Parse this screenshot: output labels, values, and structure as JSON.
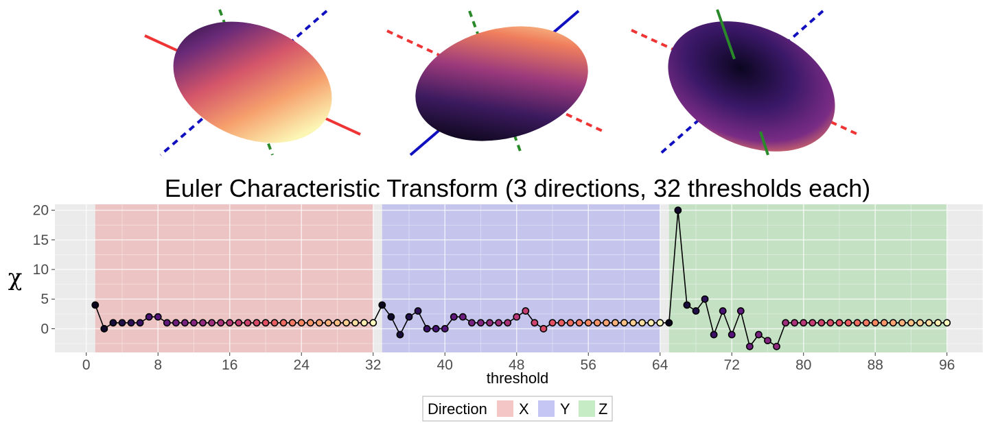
{
  "chart_data": {
    "type": "line",
    "title": "Euler Characteristic Transform (3 directions, 32 thresholds each)",
    "xlabel": "threshold",
    "ylabel": "χ",
    "xlim": [
      -3.5,
      100
    ],
    "ylim": [
      -4,
      21
    ],
    "x_ticks": [
      0,
      8,
      16,
      24,
      32,
      40,
      48,
      56,
      64,
      72,
      80,
      88,
      96
    ],
    "y_ticks": [
      0,
      5,
      10,
      15,
      20
    ],
    "grid": true,
    "legend": {
      "title": "Direction",
      "placement": "bottom",
      "entries": [
        {
          "label": "X",
          "color": "#f4a3a3"
        },
        {
          "label": "Y",
          "color": "#a3a3f4"
        },
        {
          "label": "Z",
          "color": "#a3e0a3"
        }
      ]
    },
    "bands": [
      {
        "direction": "X",
        "x": [
          1,
          32
        ],
        "color": "#f08080"
      },
      {
        "direction": "Y",
        "x": [
          33,
          64
        ],
        "color": "#8080f0"
      },
      {
        "direction": "Z",
        "x": [
          65,
          96
        ],
        "color": "#80d080"
      }
    ],
    "series": [
      {
        "x": [
          1,
          2,
          3,
          4,
          5,
          6,
          7,
          8,
          9,
          10,
          11,
          12,
          13,
          14,
          15,
          16,
          17,
          18,
          19,
          20,
          21,
          22,
          23,
          24,
          25,
          26,
          27,
          28,
          29,
          30,
          31,
          32,
          33,
          34,
          35,
          36,
          37,
          38,
          39,
          40,
          41,
          42,
          43,
          44,
          45,
          46,
          47,
          48,
          49,
          50,
          51,
          52,
          53,
          54,
          55,
          56,
          57,
          58,
          59,
          60,
          61,
          62,
          63,
          64,
          65,
          66,
          67,
          68,
          69,
          70,
          71,
          72,
          73,
          74,
          75,
          76,
          77,
          78,
          79,
          80,
          81,
          82,
          83,
          84,
          85,
          86,
          87,
          88,
          89,
          90,
          91,
          92,
          93,
          94,
          95,
          96
        ],
        "values": [
          4,
          0,
          1,
          1,
          1,
          1,
          2,
          2,
          1,
          1,
          1,
          1,
          1,
          1,
          1,
          1,
          1,
          1,
          1,
          1,
          1,
          1,
          1,
          1,
          1,
          1,
          1,
          1,
          1,
          1,
          1,
          1,
          4,
          2,
          -1,
          2,
          3,
          0,
          0,
          0,
          2,
          2,
          1,
          1,
          1,
          1,
          1,
          2,
          3,
          1,
          0,
          1,
          1,
          1,
          1,
          1,
          1,
          1,
          1,
          1,
          1,
          1,
          1,
          1,
          1,
          20,
          4,
          3,
          5,
          -1,
          3,
          -1,
          3,
          -3,
          -1,
          -2,
          -3,
          1,
          1,
          1,
          1,
          1,
          1,
          1,
          1,
          1,
          1,
          1,
          1,
          1,
          1,
          1,
          1,
          1,
          1,
          1
        ]
      }
    ],
    "point_color_scale": "magma (dark purple to pale yellow within each direction)"
  }
}
